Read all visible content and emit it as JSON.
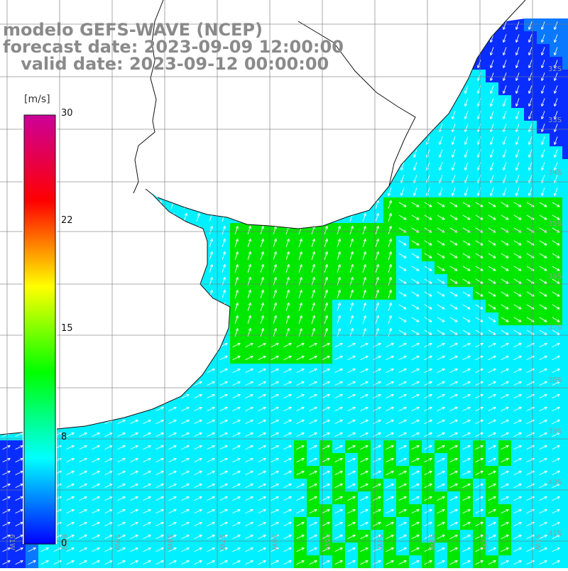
{
  "header": {
    "line1": "modelo GEFS-WAVE (NCEP)",
    "line2": "forecast date: 2023-09-09 12:00:00",
    "line3": "   valid date: 2023-09-12 00:00:00"
  },
  "legend": {
    "unit": "[m/s]",
    "min": 0,
    "max": 30,
    "ticks": [
      "30",
      "22",
      "15",
      "8",
      "0"
    ],
    "colors": [
      "#0000ff",
      "#00ffff",
      "#00ff00",
      "#ffff00",
      "#ff0000",
      "#cc0099"
    ]
  },
  "map": {
    "ocean_colors": {
      "strong_blue": "#0a2dff",
      "blue": "#0a78ff",
      "cyan": "#00f0ff",
      "green": "#00e800",
      "light_green": "#33ff66"
    },
    "land_color": "#ffffff",
    "grid_color": "#777777",
    "lat_labels": [
      "32S",
      "33S",
      "34S",
      "35S",
      "36S",
      "37S",
      "38S",
      "39S",
      "40S",
      "41S"
    ],
    "lon_labels": [
      "61W",
      "60W",
      "59W",
      "58W",
      "57W",
      "56W",
      "55W",
      "54W",
      "53W",
      "52W",
      "51W"
    ]
  }
}
